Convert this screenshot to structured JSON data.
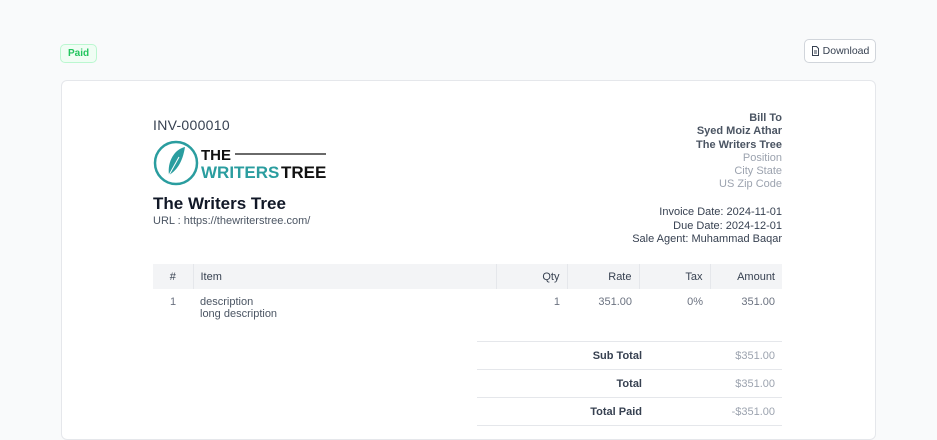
{
  "status_badge": "Paid",
  "download_label": "Download",
  "invoice": {
    "number": "INV-000010",
    "logo_text": "THE WRITERS TREE",
    "company_name": "The Writers Tree",
    "url": "URL : https://thewriterstree.com/"
  },
  "bill_to": {
    "heading": "Bill To",
    "name": "Syed Moiz Athar",
    "company": "The Writers Tree",
    "position": "Position",
    "city_state": "City State",
    "zip": "US Zip Code"
  },
  "dates": {
    "invoice_date": "Invoice Date: 2024-11-01",
    "due_date": "Due Date: 2024-12-01",
    "sale_agent": "Sale Agent: Muhammad Baqar"
  },
  "table": {
    "headers": [
      "#",
      "Item",
      "Qty",
      "Rate",
      "Tax",
      "Amount"
    ],
    "rows": [
      {
        "num": "1",
        "item": "description",
        "long": "long description",
        "qty": "1",
        "rate": "351.00",
        "tax": "0%",
        "amount": "351.00"
      }
    ]
  },
  "totals": [
    {
      "label": "Sub Total",
      "value": "$351.00"
    },
    {
      "label": "Total",
      "value": "$351.00"
    },
    {
      "label": "Total Paid",
      "value": "-$351.00"
    }
  ],
  "colors": {
    "paid": "#22c55e",
    "logo_teal": "#2a9d9f"
  }
}
